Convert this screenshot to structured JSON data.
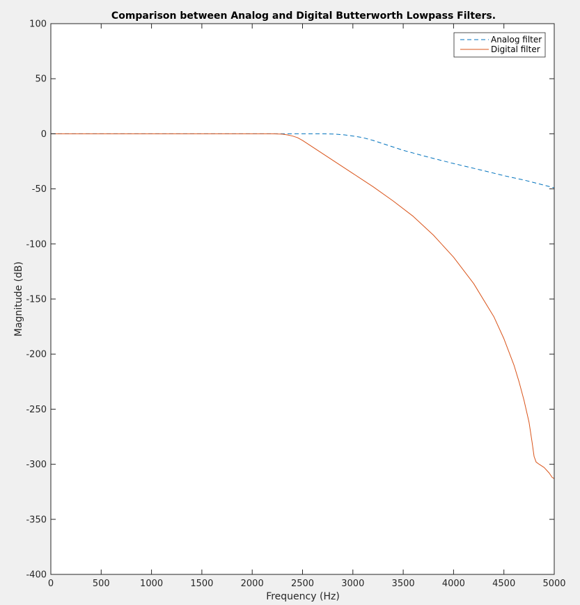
{
  "chart_data": {
    "type": "line",
    "title": "Comparison between Analog and Digital Butterworth Lowpass Filters.",
    "xlabel": "Frequency (Hz)",
    "ylabel": "Magnitude (dB)",
    "xlim": [
      0,
      5000
    ],
    "ylim": [
      -400,
      100
    ],
    "xticks": [
      0,
      500,
      1000,
      1500,
      2000,
      2500,
      3000,
      3500,
      4000,
      4500,
      5000
    ],
    "yticks": [
      100,
      50,
      0,
      -50,
      -100,
      -150,
      -200,
      -250,
      -300,
      -350,
      -400
    ],
    "xtick_labels": [
      "0",
      "500",
      "1000",
      "1500",
      "2000",
      "2500",
      "3000",
      "3500",
      "4000",
      "4500",
      "5000"
    ],
    "ytick_labels": [
      "100",
      "50",
      "0",
      "-50",
      "-100",
      "-150",
      "-200",
      "-250",
      "-300",
      "-350",
      "-400"
    ],
    "grid": false,
    "legend_position": "top-right",
    "series": [
      {
        "name": "Analog filter",
        "color": "#0072bd",
        "style": "dashed",
        "x": [
          0,
          500,
          1000,
          1500,
          2000,
          2300,
          2500,
          2700,
          2800,
          2900,
          3000,
          3100,
          3200,
          3300,
          3400,
          3500,
          3700,
          4000,
          4300,
          4500,
          4700,
          5000
        ],
        "y": [
          0,
          0,
          0,
          0,
          0,
          0,
          0,
          0,
          -0.2,
          -0.8,
          -2,
          -3.5,
          -6,
          -9,
          -12,
          -15,
          -20,
          -27,
          -33.5,
          -38,
          -42,
          -49
        ]
      },
      {
        "name": "Digital filter",
        "color": "#d95319",
        "style": "solid",
        "x": [
          0,
          500,
          1000,
          1500,
          2000,
          2200,
          2300,
          2350,
          2400,
          2450,
          2500,
          2600,
          2700,
          2800,
          2900,
          3000,
          3200,
          3400,
          3600,
          3800,
          4000,
          4200,
          4400,
          4500,
          4600,
          4650,
          4700,
          4750,
          4780,
          4800,
          4820,
          4850,
          4900,
          4950,
          4980,
          5000
        ],
        "y": [
          0,
          0,
          0,
          0,
          0,
          0,
          -0.3,
          -1,
          -2,
          -3.5,
          -6,
          -12,
          -18,
          -24,
          -30,
          -36,
          -48,
          -61,
          -75,
          -92,
          -112,
          -136,
          -166,
          -186,
          -210,
          -225,
          -242,
          -262,
          -280,
          -293,
          -298,
          -300,
          -303,
          -308,
          -312,
          -313
        ]
      }
    ]
  }
}
